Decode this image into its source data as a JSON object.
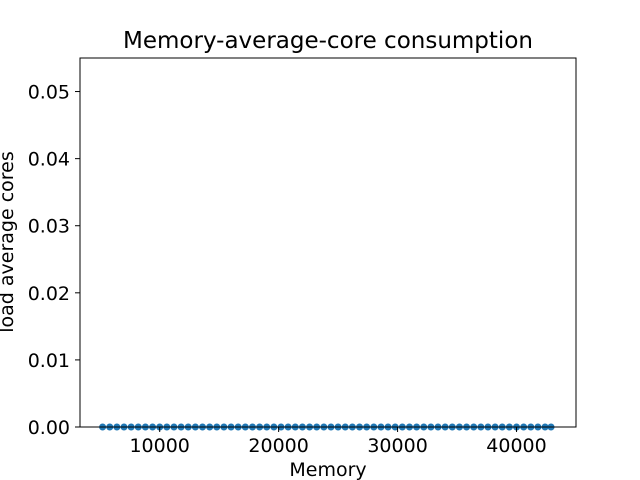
{
  "chart_data": {
    "type": "scatter",
    "title": "Memory-average-core consumption",
    "xlabel": "Memory",
    "ylabel": "load average cores",
    "xlim": [
      3300,
      45000
    ],
    "ylim": [
      0.0,
      0.055
    ],
    "x_ticks": [
      10000,
      20000,
      30000,
      40000
    ],
    "x_tick_labels": [
      "10000",
      "20000",
      "30000",
      "40000"
    ],
    "y_ticks": [
      0.0,
      0.01,
      0.02,
      0.03,
      0.04,
      0.05
    ],
    "y_tick_labels": [
      "0.00",
      "0.01",
      "0.02",
      "0.03",
      "0.04",
      "0.05"
    ],
    "grid": false,
    "series": [
      {
        "color": "#1f77b4",
        "points": [
          [
            5200,
            0
          ],
          [
            5800,
            0
          ],
          [
            6400,
            0
          ],
          [
            7000,
            0
          ],
          [
            7600,
            0
          ],
          [
            8200,
            0
          ],
          [
            8800,
            0
          ],
          [
            9400,
            0
          ],
          [
            10000,
            0
          ],
          [
            10600,
            0
          ],
          [
            11200,
            0
          ],
          [
            11800,
            0
          ],
          [
            12400,
            0
          ],
          [
            13000,
            0
          ],
          [
            13600,
            0
          ],
          [
            14200,
            0
          ],
          [
            14800,
            0
          ],
          [
            15400,
            0
          ],
          [
            16000,
            0
          ],
          [
            16600,
            0
          ],
          [
            17200,
            0
          ],
          [
            17800,
            0
          ],
          [
            18400,
            0
          ],
          [
            19000,
            0
          ],
          [
            19600,
            0
          ],
          [
            20200,
            0
          ],
          [
            20800,
            0
          ],
          [
            21400,
            0
          ],
          [
            22000,
            0
          ],
          [
            22600,
            0
          ],
          [
            23200,
            0
          ],
          [
            23800,
            0
          ],
          [
            24400,
            0
          ],
          [
            25000,
            0
          ],
          [
            25600,
            0
          ],
          [
            26200,
            0
          ],
          [
            26800,
            0
          ],
          [
            27400,
            0
          ],
          [
            28000,
            0
          ],
          [
            28600,
            0
          ],
          [
            29200,
            0
          ],
          [
            29800,
            0
          ],
          [
            30400,
            0
          ],
          [
            31000,
            0
          ],
          [
            31600,
            0
          ],
          [
            32200,
            0
          ],
          [
            32800,
            0
          ],
          [
            33400,
            0
          ],
          [
            34000,
            0
          ],
          [
            34600,
            0
          ],
          [
            35200,
            0
          ],
          [
            35800,
            0
          ],
          [
            36400,
            0
          ],
          [
            37000,
            0
          ],
          [
            37600,
            0
          ],
          [
            38200,
            0
          ],
          [
            38800,
            0
          ],
          [
            39400,
            0
          ],
          [
            40000,
            0
          ],
          [
            40600,
            0
          ],
          [
            41200,
            0
          ],
          [
            41800,
            0
          ],
          [
            42400,
            0
          ],
          [
            42900,
            0
          ]
        ]
      }
    ]
  }
}
